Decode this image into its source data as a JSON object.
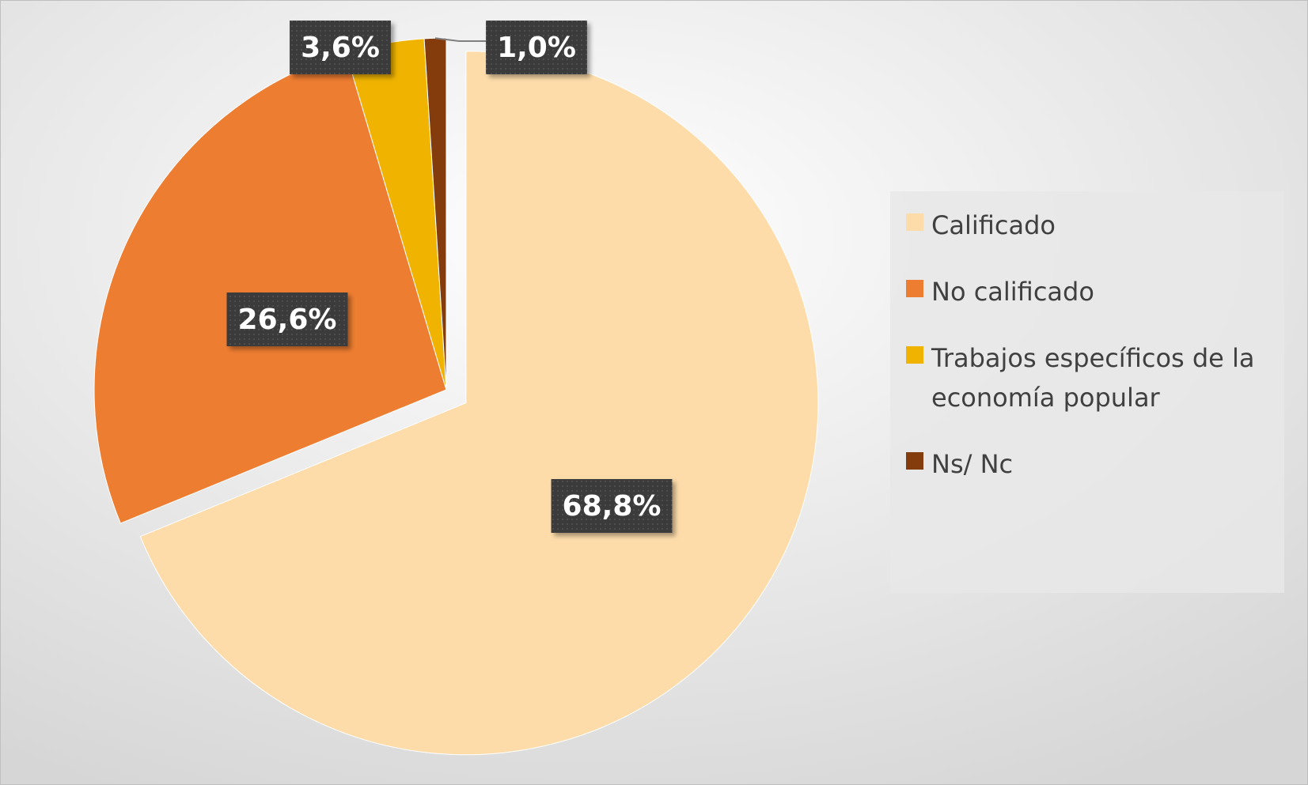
{
  "chart_data": {
    "type": "pie",
    "categories": [
      "Calificado",
      "No calificado",
      "Trabajos específicos de la economía popular",
      "Ns/ Nc"
    ],
    "values": [
      68.8,
      26.6,
      3.6,
      1.0
    ],
    "value_labels": [
      "68,8%",
      "26,6%",
      "3,6%",
      "1,0%"
    ],
    "colors": [
      "#FDDCAA",
      "#ED7D31",
      "#EFB300",
      "#843C0C"
    ],
    "legend": "right"
  }
}
